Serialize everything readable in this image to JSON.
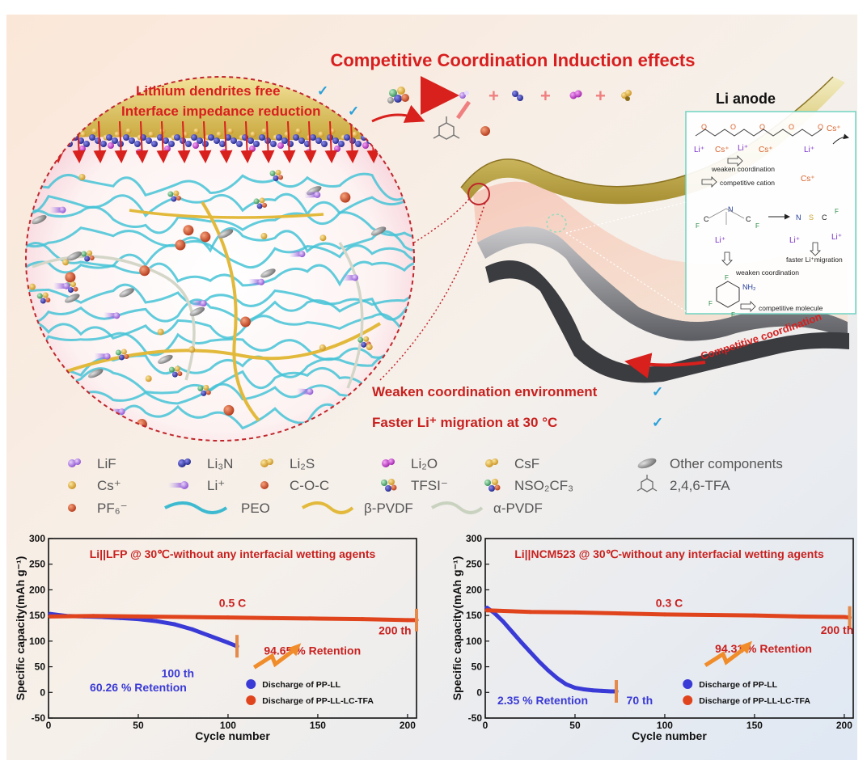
{
  "title": "Competitive Coordination Induction effects",
  "interface": {
    "benefits": [
      "Lithium dendrites free",
      "Interface impedance reduction"
    ],
    "check": "✓"
  },
  "reaction": {
    "plus": "+"
  },
  "anode": {
    "label": "Li anode",
    "curve_label": "Competitive coordination"
  },
  "mechanism": {
    "li": "Li⁺",
    "cs": "Cs⁺",
    "n": "N",
    "f": "F",
    "s": "S",
    "nh2": "NH₂",
    "o": "O",
    "c": "C",
    "weaken_1": "weaken coordination",
    "competitive_cation": "competitive cation",
    "faster_li": "faster Li⁺migration",
    "weaken_2": "weaken coordination",
    "competitive_molecule": "competitive molecule"
  },
  "claims": [
    {
      "text": "Weaken coordination environment",
      "check": "✓"
    },
    {
      "text": "Faster Li⁺ migration at 30 °C",
      "check": "✓"
    }
  ],
  "legend": [
    {
      "label": "LiF",
      "icon": "lif-cluster-icon",
      "color": "#9b6fd6"
    },
    {
      "label": "Li₃N",
      "icon": "li3n-cluster-icon",
      "color": "#2a2f9c"
    },
    {
      "label": "Li₂S",
      "icon": "li2s-cluster-icon",
      "color": "#c8a23a"
    },
    {
      "label": "Li₂O",
      "icon": "li2o-cluster-icon",
      "color": "#c23fc6"
    },
    {
      "label": "CsF",
      "icon": "csf-cluster-icon",
      "color": "#d9a531"
    },
    {
      "label": "Other components",
      "icon": "other-component-ellipse-icon",
      "color": "#8a8a8a"
    },
    {
      "label": "Cs⁺",
      "icon": "cs-ion-icon",
      "color": "#e0a52a"
    },
    {
      "label": "Li⁺",
      "icon": "li-ion-comet-icon",
      "color": "#a46ee0"
    },
    {
      "label": "C-O-C",
      "icon": "coc-sphere-icon",
      "color": "#c2421f"
    },
    {
      "label": "TFSI⁻",
      "icon": "tfsi-molecule-icon",
      "color": "#3f7f6a"
    },
    {
      "label": "NSO₂CF₃",
      "icon": "nso2cf3-molecule-icon",
      "color": "#3b5fa8"
    },
    {
      "label": "2,4,6-TFA",
      "icon": "tfa-molecule-icon",
      "color": "#6b6b6b"
    },
    {
      "label": "PF₆⁻",
      "icon": "pf6-ion-icon",
      "color": "#c0621f"
    },
    {
      "label": "PEO",
      "icon": "peo-chain-icon",
      "color": "#3dbad0"
    },
    {
      "label": "β-PVDF",
      "icon": "beta-pvdf-chain-icon",
      "color": "#e2b93b"
    },
    {
      "label": "α-PVDF",
      "icon": "alpha-pvdf-chain-icon",
      "color": "#c9d2bf"
    }
  ],
  "colors": {
    "title_red": "#d81e1e",
    "peo": "#3dbad0",
    "pp_ll": "#3a3ad6",
    "pp_ll_lc_tfa": "#e0441d",
    "retention_blue": "#3a3ad6",
    "retention_red": "#c8201e"
  },
  "chart_data": [
    {
      "type": "line",
      "title": "Li||LFP @ 30℃-without any interfacial wetting agents",
      "xlabel": "Cycle number",
      "ylabel": "Specific capacity(mAh g⁻¹)",
      "xlim": [
        0,
        205
      ],
      "ylim": [
        -50,
        300
      ],
      "xticks": [
        "0",
        "50",
        "100",
        "150",
        "200"
      ],
      "yticks": [
        "-50",
        "0",
        "50",
        "100",
        "150",
        "200",
        "250",
        "300"
      ],
      "rate_label": "0.5 C",
      "series": [
        {
          "name": "Discharge of PP-LL",
          "x": [
            1,
            10,
            20,
            30,
            40,
            50,
            60,
            70,
            80,
            90,
            100,
            105
          ],
          "y": [
            153,
            149,
            148,
            147,
            145,
            143,
            139,
            133,
            123,
            110,
            97,
            90
          ]
        },
        {
          "name": "Discharge of PP-LL-LC-TFA",
          "x": [
            1,
            25,
            50,
            75,
            100,
            125,
            150,
            175,
            200,
            205
          ],
          "y": [
            148,
            149,
            148,
            147,
            146,
            145,
            144,
            143,
            141,
            141
          ]
        }
      ],
      "annotations": [
        {
          "text": "100 th",
          "x": 72,
          "y": 30
        },
        {
          "text": "60.26 % Retention",
          "x": 50,
          "y": 2
        },
        {
          "text": "200 th",
          "x": 193,
          "y": 113
        },
        {
          "text": "94.65 % Retention",
          "x": 147,
          "y": 74
        }
      ]
    },
    {
      "type": "line",
      "title": "Li||NCM523 @ 30℃-without any interfacial wetting agents",
      "xlabel": "Cycle number",
      "ylabel": "Specific capacity(mAh g⁻¹)",
      "xlim": [
        0,
        205
      ],
      "ylim": [
        -50,
        300
      ],
      "xticks": [
        "0",
        "50",
        "100",
        "150",
        "200"
      ],
      "yticks": [
        "-50",
        "0",
        "50",
        "100",
        "150",
        "200",
        "250",
        "300"
      ],
      "rate_label": "0.3 C",
      "series": [
        {
          "name": "Discharge of PP-LL",
          "x": [
            1,
            5,
            10,
            15,
            20,
            25,
            30,
            35,
            40,
            45,
            50,
            55,
            60,
            65,
            70,
            73
          ],
          "y": [
            165,
            155,
            138,
            118,
            98,
            79,
            60,
            43,
            28,
            16,
            9,
            6,
            4,
            3,
            2,
            2
          ]
        },
        {
          "name": "Discharge of PP-LL-LC-TFA",
          "x": [
            1,
            25,
            50,
            75,
            100,
            125,
            150,
            175,
            200,
            203
          ],
          "y": [
            160,
            157,
            156,
            154,
            152,
            151,
            150,
            148,
            147,
            146
          ]
        }
      ],
      "annotations": [
        {
          "text": "2.35 %  Retention",
          "x": 32,
          "y": -23
        },
        {
          "text": "70 th",
          "x": 86,
          "y": -23
        },
        {
          "text": "200 th",
          "x": 196,
          "y": 114
        },
        {
          "text": "94.31 %  Retention",
          "x": 155,
          "y": 78
        }
      ]
    }
  ]
}
